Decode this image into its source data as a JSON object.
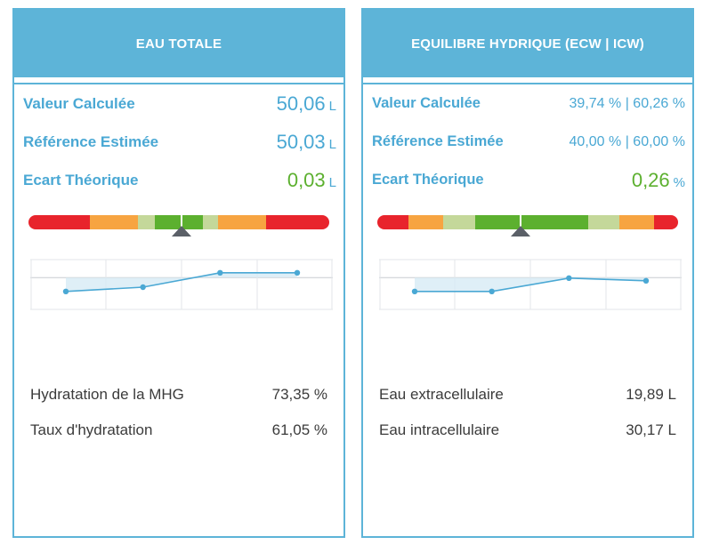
{
  "panels": [
    {
      "title": "EAU TOTALE",
      "metrics": [
        {
          "label": "Valeur Calculée",
          "value": "50,06",
          "unit": "L"
        },
        {
          "label": "Référence Estimée",
          "value": "50,03",
          "unit": "L"
        },
        {
          "label": "Ecart Théorique",
          "value": "0,03",
          "unit": "L"
        }
      ],
      "gauge": {
        "segment_colors": [
          "#e8242c",
          "#f7a441",
          "#c4d89a",
          "#5cb02f",
          "#5cb02f",
          "#c4d89a",
          "#f7a441",
          "#e8242c"
        ],
        "segment_shares": [
          0.205,
          0.16,
          0.055,
          0.09,
          0.07,
          0.05,
          0.16,
          0.21
        ],
        "pointer_fraction": 0.51
      },
      "trend_points": [
        0.63,
        0.55,
        0.28,
        0.28
      ],
      "stats": [
        {
          "label": "Hydratation de la MHG",
          "value": "73,35 %"
        },
        {
          "label": "Taux d'hydratation",
          "value": "61,05 %"
        }
      ]
    },
    {
      "title": "EQUILIBRE HYDRIQUE (ECW | ICW)",
      "metrics": [
        {
          "label": "Valeur Calculée",
          "value": "39,74 % | 60,26 %",
          "unit": ""
        },
        {
          "label": "Référence Estimée",
          "value": "40,00 % | 60,00 %",
          "unit": ""
        },
        {
          "label": "Ecart Théorique",
          "value": "0,26",
          "unit": "%"
        }
      ],
      "gauge": {
        "segment_colors": [
          "#e8242c",
          "#f7a441",
          "#c4d89a",
          "#5cb02f",
          "#5cb02f",
          "#5cb02f",
          "#c4d89a",
          "#f7a441",
          "#e8242c"
        ],
        "segment_shares": [
          0.105,
          0.115,
          0.105,
          0.14,
          0.04,
          0.195,
          0.105,
          0.115,
          0.08
        ],
        "pointer_fraction": 0.475
      },
      "trend_points": [
        0.63,
        0.63,
        0.38,
        0.43
      ],
      "stats": [
        {
          "label": "Eau extracellulaire",
          "value": "19,89 L"
        },
        {
          "label": "Eau intracellulaire",
          "value": "30,17 L"
        }
      ]
    }
  ],
  "colors": {
    "accent": "#5db4d8",
    "label_blue": "#4aa8d4",
    "deviation_green": "#5cb02f",
    "trend_line": "#4aa8d4",
    "trend_fill": "#d7ebf5",
    "gauge_pointer": "#5b6068"
  }
}
